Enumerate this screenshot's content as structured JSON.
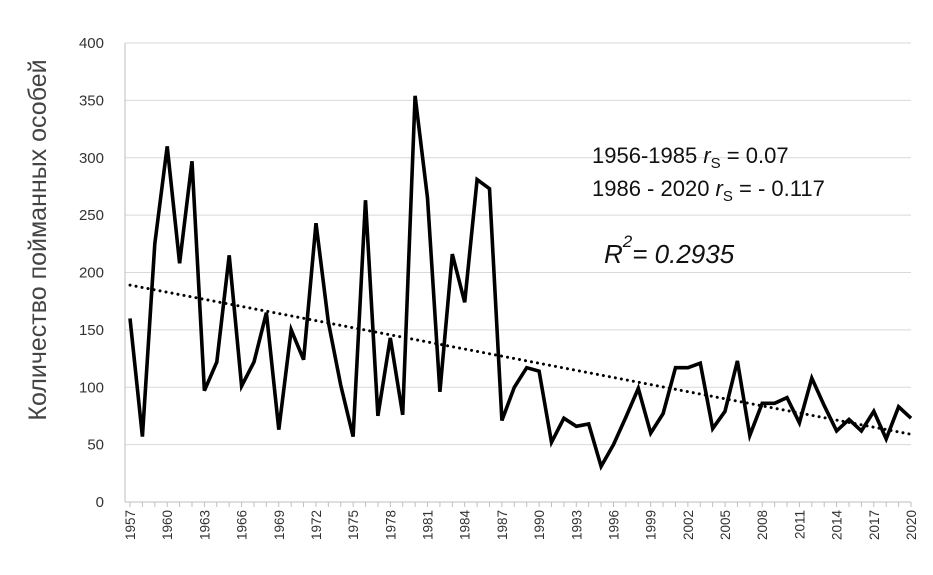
{
  "chart_data": {
    "type": "line",
    "ylabel": "Количество пойманных особей",
    "ylim": [
      0,
      400
    ],
    "yticks": [
      "0",
      "50",
      "100",
      "150",
      "200",
      "250",
      "300",
      "350",
      "400"
    ],
    "x_tick_labels": [
      "1957",
      "1960",
      "1963",
      "1966",
      "1969",
      "1972",
      "1975",
      "1978",
      "1981",
      "1984",
      "1987",
      "1990",
      "1993",
      "1996",
      "1999",
      "2002",
      "2005",
      "2008",
      "2011",
      "2014",
      "2017",
      "2020"
    ],
    "grid": true,
    "x": [
      1957,
      1958,
      1959,
      1960,
      1961,
      1962,
      1963,
      1964,
      1965,
      1966,
      1967,
      1968,
      1969,
      1970,
      1971,
      1972,
      1973,
      1974,
      1975,
      1976,
      1977,
      1978,
      1979,
      1980,
      1981,
      1982,
      1983,
      1984,
      1985,
      1986,
      1987,
      1988,
      1989,
      1990,
      1991,
      1992,
      1993,
      1994,
      1995,
      1996,
      1997,
      1998,
      1999,
      2000,
      2001,
      2002,
      2003,
      2004,
      2005,
      2006,
      2007,
      2008,
      2009,
      2010,
      2011,
      2012,
      2013,
      2014,
      2015,
      2016,
      2017,
      2018,
      2019,
      2020
    ],
    "series": [
      {
        "values": [
          160,
          57,
          225,
          310,
          208,
          297,
          97,
          122,
          215,
          101,
          122,
          165,
          63,
          150,
          124,
          243,
          157,
          102,
          57,
          263,
          75,
          143,
          76,
          354,
          265,
          96,
          216,
          174,
          281,
          273,
          71,
          100,
          117,
          114,
          52,
          73,
          66,
          68,
          31,
          50,
          74,
          99,
          60,
          77,
          117,
          117,
          121,
          64,
          79,
          123,
          58,
          86,
          86,
          91,
          69,
          108,
          84,
          62,
          72,
          62,
          79,
          55,
          83,
          73
        ],
        "color": "#000000"
      },
      {
        "type": "trendline",
        "style": "dotted",
        "x": [
          1957,
          2020
        ],
        "values": [
          189,
          59
        ],
        "color": "#000000"
      }
    ],
    "annotations": {
      "line1_prefix": "1956-1985 ",
      "line1_r": "r",
      "line1_sub": "S",
      "line1_suffix": " = 0.07",
      "line2_prefix": "1986 - 2020 ",
      "line2_r": "r",
      "line2_sub": "S",
      "line2_suffix": " = - 0.117",
      "r2_r": "R",
      "r2_sup": "2",
      "r2_value": "= 0.2935"
    }
  }
}
